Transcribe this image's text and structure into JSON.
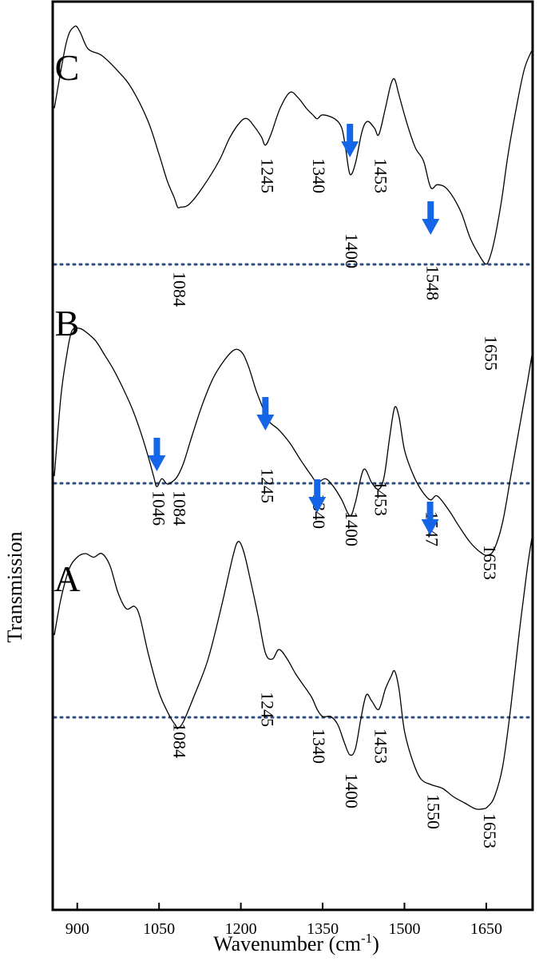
{
  "chart_data": {
    "type": "line",
    "xlabel": "Wavenumber (cm",
    "xlabel_sup": "-1",
    "xlabel_close": ")",
    "ylabel": "Transmission",
    "xlim": [
      855,
      1735
    ],
    "x_ticks": [
      900,
      1050,
      1200,
      1350,
      1500,
      1650
    ],
    "x_tick_labels": [
      "900",
      "1050",
      "1200",
      "1350",
      "1500",
      "1650"
    ],
    "grid": false,
    "arrow_color": "#1565e8",
    "baseline_color": "#2f4f7f",
    "series": [
      {
        "name": "C",
        "x": [
          858,
          880,
          895,
          905,
          920,
          945,
          975,
          1000,
          1030,
          1050,
          1065,
          1078,
          1084,
          1090,
          1105,
          1130,
          1160,
          1180,
          1200,
          1212,
          1225,
          1238,
          1245,
          1255,
          1272,
          1290,
          1305,
          1320,
          1332,
          1340,
          1350,
          1372,
          1385,
          1392,
          1400,
          1410,
          1422,
          1432,
          1445,
          1453,
          1465,
          1475,
          1482,
          1490,
          1505,
          1520,
          1535,
          1548,
          1560,
          1575,
          1590,
          1605,
          1620,
          1635,
          1648,
          1655,
          1665,
          1678,
          1690,
          1705,
          1720,
          1735
        ],
        "y": [
          0.3,
          0.8,
          0.92,
          0.88,
          0.75,
          0.7,
          0.58,
          0.45,
          0.2,
          -0.05,
          -0.25,
          -0.38,
          -0.45,
          -0.45,
          -0.43,
          -0.3,
          -0.1,
          0.08,
          0.2,
          0.22,
          0.16,
          0.08,
          0.02,
          0.1,
          0.3,
          0.42,
          0.38,
          0.3,
          0.25,
          0.22,
          0.25,
          0.22,
          0.15,
          0.0,
          -0.2,
          -0.12,
          0.12,
          0.2,
          0.15,
          0.1,
          0.3,
          0.48,
          0.52,
          0.4,
          0.18,
          0.0,
          -0.1,
          -0.3,
          -0.28,
          -0.3,
          -0.38,
          -0.5,
          -0.68,
          -0.8,
          -0.88,
          -0.85,
          -0.7,
          -0.4,
          -0.05,
          0.3,
          0.6,
          0.75
        ],
        "baseline": -0.45,
        "peak_labels": [
          "1084",
          "1245",
          "1340",
          "1400",
          "1453",
          "1548",
          "1655"
        ],
        "peak_x": [
          1084,
          1245,
          1340,
          1400,
          1453,
          1548,
          1655
        ],
        "arrows": [
          1400,
          1548
        ]
      },
      {
        "name": "B",
        "x": [
          858,
          870,
          880,
          890,
          905,
          920,
          935,
          950,
          965,
          980,
          1000,
          1015,
          1030,
          1040,
          1046,
          1055,
          1065,
          1075,
          1084,
          1095,
          1110,
          1130,
          1150,
          1170,
          1185,
          1195,
          1205,
          1215,
          1228,
          1240,
          1245,
          1255,
          1270,
          1290,
          1310,
          1330,
          1340,
          1355,
          1370,
          1385,
          1400,
          1410,
          1425,
          1440,
          1453,
          1463,
          1473,
          1482,
          1490,
          1500,
          1515,
          1530,
          1547,
          1560,
          1580,
          1600,
          1620,
          1640,
          1653,
          1665,
          1680,
          1695,
          1710,
          1725,
          1735
        ],
        "y": [
          -0.4,
          0.2,
          0.5,
          0.7,
          0.72,
          0.68,
          0.62,
          0.52,
          0.42,
          0.3,
          0.12,
          -0.05,
          -0.25,
          -0.4,
          -0.48,
          -0.42,
          -0.46,
          -0.44,
          -0.4,
          -0.3,
          -0.1,
          0.15,
          0.35,
          0.48,
          0.55,
          0.56,
          0.52,
          0.42,
          0.25,
          0.12,
          0.05,
          0.0,
          -0.05,
          -0.15,
          -0.28,
          -0.4,
          -0.45,
          -0.42,
          -0.48,
          -0.58,
          -0.7,
          -0.6,
          -0.35,
          -0.45,
          -0.5,
          -0.4,
          -0.1,
          0.12,
          0.05,
          -0.2,
          -0.38,
          -0.5,
          -0.58,
          -0.55,
          -0.65,
          -0.78,
          -0.9,
          -0.98,
          -1.0,
          -0.95,
          -0.75,
          -0.4,
          -0.05,
          0.3,
          0.55
        ],
        "baseline": -0.45,
        "peak_labels": [
          "1046",
          "1084",
          "1245",
          "1340",
          "1400",
          "1453",
          "1547",
          "1653"
        ],
        "peak_x": [
          1046,
          1084,
          1245,
          1340,
          1400,
          1453,
          1547,
          1653
        ],
        "arrows": [
          1046,
          1245,
          1340,
          1547
        ]
      },
      {
        "name": "A",
        "x": [
          858,
          870,
          885,
          900,
          915,
          930,
          945,
          960,
          975,
          990,
          1005,
          1015,
          1030,
          1050,
          1070,
          1080,
          1084,
          1095,
          1115,
          1140,
          1165,
          1185,
          1195,
          1205,
          1218,
          1232,
          1245,
          1258,
          1270,
          1285,
          1300,
          1315,
          1330,
          1340,
          1350,
          1365,
          1378,
          1390,
          1400,
          1410,
          1420,
          1430,
          1440,
          1453,
          1465,
          1475,
          1482,
          1490,
          1500,
          1515,
          1530,
          1550,
          1570,
          1590,
          1610,
          1630,
          1645,
          1653,
          1665,
          1680,
          1695,
          1710,
          1725,
          1735
        ],
        "y": [
          -0.1,
          0.2,
          0.45,
          0.55,
          0.58,
          0.55,
          0.58,
          0.48,
          0.25,
          0.12,
          0.14,
          0.05,
          -0.25,
          -0.58,
          -0.78,
          -0.85,
          -0.88,
          -0.82,
          -0.6,
          -0.3,
          0.15,
          0.55,
          0.68,
          0.6,
          0.35,
          0.05,
          -0.25,
          -0.3,
          -0.22,
          -0.3,
          -0.42,
          -0.52,
          -0.62,
          -0.72,
          -0.78,
          -0.78,
          -0.85,
          -1.0,
          -1.1,
          -1.05,
          -0.8,
          -0.6,
          -0.65,
          -0.72,
          -0.55,
          -0.45,
          -0.4,
          -0.55,
          -0.9,
          -1.15,
          -1.3,
          -1.35,
          -1.38,
          -1.45,
          -1.5,
          -1.55,
          -1.55,
          -1.53,
          -1.45,
          -1.2,
          -0.7,
          -0.1,
          0.45,
          0.75
        ],
        "baseline": -0.78,
        "peak_labels": [
          "1084",
          "1245",
          "1340",
          "1400",
          "1453",
          "1550",
          "1653"
        ],
        "peak_x": [
          1084,
          1245,
          1340,
          1400,
          1453,
          1550,
          1653
        ],
        "arrows": []
      }
    ]
  }
}
